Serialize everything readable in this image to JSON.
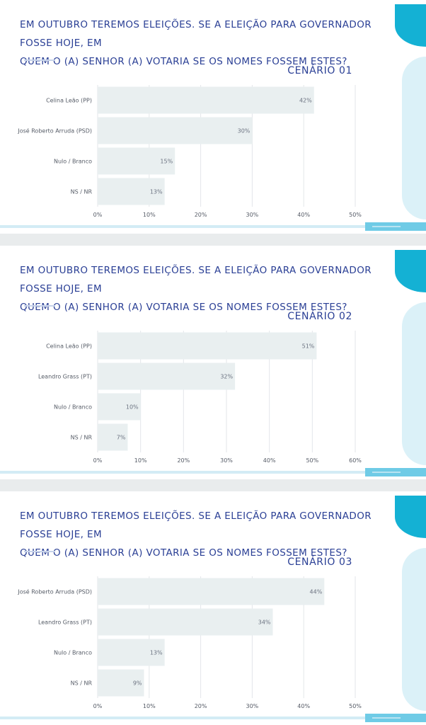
{
  "colors": {
    "title": "#2a3f95",
    "bar": "#e9eff0",
    "grid": "#e3e6ea",
    "accent": "#14b1d4"
  },
  "panels": [
    {
      "title_line1": "EM OUTUBRO TEREMOS ELEIÇÕES. SE A ELEIÇÃO PARA GOVERNADOR  FOSSE HOJE, EM",
      "title_line2": "QUEM O (A) SENHOR (A) VOTARIA SE OS NOMES FOSSEM ESTES?",
      "scenario": "CENÁRIO 01"
    },
    {
      "title_line1": "EM OUTUBRO TEREMOS ELEIÇÕES. SE A ELEIÇÃO PARA GOVERNADOR  FOSSE HOJE, EM",
      "title_line2": "QUEM O (A) SENHOR (A) VOTARIA SE OS NOMES FOSSEM ESTES?",
      "scenario": "CENÁRIO 02"
    },
    {
      "title_line1": "EM OUTUBRO TEREMOS ELEIÇÕES. SE A ELEIÇÃO PARA GOVERNADOR  FOSSE HOJE, EM",
      "title_line2": "QUEM O (A) SENHOR (A) VOTARIA SE OS NOMES FOSSEM ESTES?",
      "scenario": "CENÁRIO 03"
    }
  ],
  "chart_data": [
    {
      "type": "bar",
      "orientation": "horizontal",
      "title": "EM OUTUBRO TEREMOS ELEIÇÕES. SE A ELEIÇÃO PARA GOVERNADOR  FOSSE HOJE, EM QUEM O (A) SENHOR (A) VOTARIA SE OS NOMES FOSSEM ESTES?",
      "subtitle": "CENÁRIO 01",
      "categories": [
        "Celina Leão (PP)",
        "José Roberto Arruda (PSD)",
        "Nulo / Branco",
        "NS / NR"
      ],
      "values": [
        42,
        30,
        15,
        13
      ],
      "value_labels": [
        "42%",
        "30%",
        "15%",
        "13%"
      ],
      "xlim": [
        0,
        50
      ],
      "ticks": [
        "0%",
        "10%",
        "20%",
        "30%",
        "40%",
        "50%"
      ],
      "grid": true,
      "legend": "none"
    },
    {
      "type": "bar",
      "orientation": "horizontal",
      "title": "EM OUTUBRO TEREMOS ELEIÇÕES. SE A ELEIÇÃO PARA GOVERNADOR  FOSSE HOJE, EM QUEM O (A) SENHOR (A) VOTARIA SE OS NOMES FOSSEM ESTES?",
      "subtitle": "CENÁRIO 02",
      "categories": [
        "Celina Leão (PP)",
        "Leandro Grass (PT)",
        "Nulo / Branco",
        "NS / NR"
      ],
      "values": [
        51,
        32,
        10,
        7
      ],
      "value_labels": [
        "51%",
        "32%",
        "10%",
        "7%"
      ],
      "xlim": [
        0,
        60
      ],
      "ticks": [
        "0%",
        "10%",
        "20%",
        "30%",
        "40%",
        "50%",
        "60%"
      ],
      "grid": true,
      "legend": "none"
    },
    {
      "type": "bar",
      "orientation": "horizontal",
      "title": "EM OUTUBRO TEREMOS ELEIÇÕES. SE A ELEIÇÃO PARA GOVERNADOR  FOSSE HOJE, EM QUEM O (A) SENHOR (A) VOTARIA SE OS NOMES FOSSEM ESTES?",
      "subtitle": "CENÁRIO 03",
      "categories": [
        "José Roberto Arruda (PSD)",
        "Leandro Grass (PT)",
        "Nulo / Branco",
        "NS / NR"
      ],
      "values": [
        44,
        34,
        13,
        9
      ],
      "value_labels": [
        "44%",
        "34%",
        "13%",
        "9%"
      ],
      "xlim": [
        0,
        50
      ],
      "ticks": [
        "0%",
        "10%",
        "20%",
        "30%",
        "40%",
        "50%"
      ],
      "grid": true,
      "legend": "none"
    }
  ]
}
